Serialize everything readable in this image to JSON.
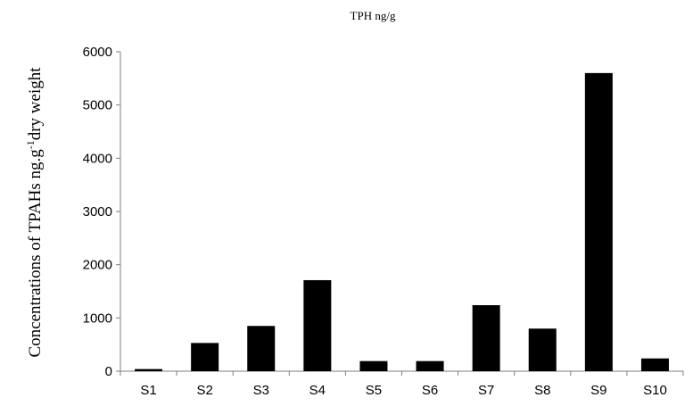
{
  "chart_data": {
    "type": "bar",
    "title": "TPH ng/g",
    "ylabel": {
      "main": "Concentrations of TPAHs ng.g",
      "superscript": "-1",
      "rest": "dry weight"
    },
    "xlabel": "",
    "categories": [
      "S1",
      "S2",
      "S3",
      "S4",
      "S5",
      "S6",
      "S7",
      "S8",
      "S9",
      "S10"
    ],
    "values": [
      40,
      530,
      850,
      1710,
      190,
      190,
      1240,
      800,
      5600,
      240
    ],
    "ylim": [
      0,
      6000
    ],
    "yticks": [
      0,
      1000,
      2000,
      3000,
      4000,
      5000,
      6000
    ],
    "grid": false,
    "legend": "none",
    "bar_color": "#000000",
    "axis_color": "#7f7f7f"
  }
}
